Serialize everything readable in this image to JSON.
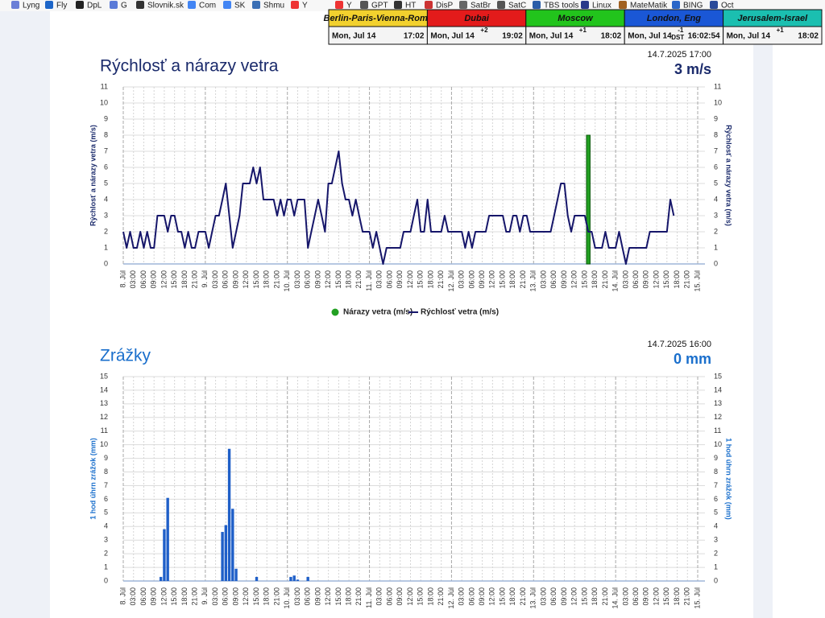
{
  "bookmarks": [
    "Lyng",
    "Fly",
    "DpL",
    "G",
    "Slovnik.sk",
    "Com",
    "SK",
    "Shmu",
    "Y",
    "Y",
    "GPT",
    "HT",
    "DisP",
    "SatBr",
    "SatC",
    "TBS tools",
    "Linux",
    "MateMatik",
    "BING",
    "Oct"
  ],
  "clocks": [
    {
      "city": "Berlin-Paris-Vienna-Roma",
      "date": "Mon, Jul 14",
      "time": "17:02",
      "color": "#f2d12e"
    },
    {
      "city": "Dubai",
      "date": "Mon, Jul 14",
      "offset": "+2",
      "time": "19:02",
      "color": "#e31b1b"
    },
    {
      "city": "Moscow",
      "date": "Mon, Jul 14",
      "offset": "+1",
      "time": "18:02",
      "color": "#22c41c"
    },
    {
      "city": "London, Eng",
      "date": "Mon, Jul 14",
      "offset": "-1",
      "note": "DST",
      "time": "16:02:54",
      "color": "#1a57d6"
    },
    {
      "city": "Jerusalem-Israel",
      "date": "Mon, Jul 14",
      "offset": "+1",
      "time": "18:02",
      "color": "#1bbfb0"
    }
  ],
  "chart_data": [
    {
      "type": "line",
      "title": "Rýchlosť a nárazy vetra",
      "timestamp": "14.7.2025 17:00",
      "current": "3 m/s",
      "y_label": "Rýchlosť a nárazy vetra (m/s)",
      "categories": [
        "8. Júl",
        null,
        null,
        "03:00",
        null,
        null,
        "06:00",
        null,
        null,
        "09:00",
        null,
        null,
        "12:00",
        null,
        null,
        "15:00",
        null,
        null,
        "18:00",
        null,
        null,
        "21:00",
        null,
        null,
        "9. Júl",
        null,
        null,
        "03:00",
        null,
        null,
        "06:00",
        null,
        null,
        "09:00",
        null,
        null,
        "12:00",
        null,
        null,
        "15:00",
        null,
        null,
        "18:00",
        null,
        null,
        "21:00",
        null,
        null,
        "10. Júl",
        null,
        null,
        "03:00",
        null,
        null,
        "06:00",
        null,
        null,
        "09:00",
        null,
        null,
        "12:00",
        null,
        null,
        "15:00",
        null,
        null,
        "18:00",
        null,
        null,
        "21:00",
        null,
        null,
        "11. Júl",
        null,
        null,
        "03:00",
        null,
        null,
        "06:00",
        null,
        null,
        "09:00",
        null,
        null,
        "12:00",
        null,
        null,
        "15:00",
        null,
        null,
        "18:00",
        null,
        null,
        "21:00",
        null,
        null,
        "12. Júl",
        null,
        null,
        "03:00",
        null,
        null,
        "06:00",
        null,
        null,
        "09:00",
        null,
        null,
        "12:00",
        null,
        null,
        "15:00",
        null,
        null,
        "18:00",
        null,
        null,
        "21:00",
        null,
        null,
        "13. Júl",
        null,
        null,
        "03:00",
        null,
        null,
        "06:00",
        null,
        null,
        "09:00",
        null,
        null,
        "12:00",
        null,
        null,
        "15:00",
        null,
        null,
        "18:00",
        null,
        null,
        "21:00",
        null,
        null,
        "14. Júl",
        null,
        null,
        "03:00",
        null,
        null,
        "06:00",
        null,
        null,
        "09:00",
        null,
        null,
        "12:00",
        null,
        null,
        "15:00",
        null,
        null,
        "18:00",
        null,
        null,
        "21:00",
        null,
        null,
        "15. Júl"
      ],
      "series": [
        {
          "name": "Nárazy vetra (m/s)",
          "type": "bar",
          "color": "#22a022",
          "values": [
            null,
            null,
            null,
            null,
            null,
            null,
            null,
            null,
            null,
            null,
            null,
            null,
            null,
            null,
            null,
            null,
            null,
            null,
            null,
            null,
            null,
            null,
            null,
            null,
            null,
            null,
            null,
            null,
            null,
            null,
            null,
            null,
            null,
            null,
            null,
            null,
            null,
            null,
            null,
            null,
            null,
            null,
            null,
            null,
            null,
            null,
            null,
            null,
            null,
            null,
            null,
            null,
            null,
            null,
            null,
            null,
            null,
            null,
            null,
            null,
            null,
            null,
            null,
            null,
            null,
            null,
            null,
            null,
            null,
            null,
            null,
            null,
            null,
            null,
            null,
            null,
            null,
            null,
            null,
            null,
            null,
            null,
            null,
            null,
            null,
            null,
            null,
            null,
            null,
            null,
            null,
            null,
            null,
            null,
            null,
            null,
            null,
            null,
            null,
            null,
            null,
            null,
            null,
            null,
            null,
            null,
            null,
            null,
            null,
            null,
            null,
            null,
            null,
            null,
            null,
            null,
            null,
            null,
            null,
            null,
            null,
            null,
            null,
            null,
            null,
            null,
            null,
            null,
            null,
            null,
            null,
            null,
            null,
            null,
            null,
            null,
            8,
            null,
            null,
            null,
            null,
            null,
            null,
            null,
            null,
            null,
            null,
            null,
            null,
            null,
            null,
            null,
            null,
            null,
            null,
            null,
            null,
            null,
            null,
            null,
            null,
            null,
            null,
            null,
            null,
            null,
            null,
            null,
            null
          ]
        },
        {
          "name": "Rýchlosť vetra (m/s)",
          "type": "line",
          "color": "#16166a",
          "values": [
            2,
            1,
            2,
            1,
            1,
            2,
            1,
            2,
            1,
            1,
            3,
            3,
            3,
            2,
            3,
            3,
            2,
            2,
            1,
            2,
            1,
            1,
            2,
            2,
            2,
            1,
            2,
            3,
            3,
            4,
            5,
            3,
            1,
            2,
            3,
            5,
            5,
            5,
            6,
            5,
            6,
            4,
            4,
            4,
            4,
            3,
            4,
            3,
            4,
            4,
            3,
            4,
            4,
            4,
            1,
            2,
            3,
            4,
            3,
            2,
            5,
            5,
            6,
            7,
            5,
            4,
            4,
            3,
            4,
            3,
            2,
            2,
            2,
            1,
            2,
            1,
            0,
            1,
            1,
            1,
            1,
            1,
            2,
            2,
            2,
            3,
            4,
            2,
            2,
            4,
            2,
            2,
            2,
            2,
            3,
            2,
            2,
            2,
            2,
            2,
            1,
            2,
            1,
            2,
            2,
            2,
            2,
            3,
            3,
            3,
            3,
            3,
            2,
            2,
            3,
            3,
            2,
            3,
            3,
            2,
            2,
            2,
            2,
            2,
            2,
            2,
            3,
            4,
            5,
            5,
            3,
            2,
            3,
            3,
            3,
            3,
            2,
            2,
            1,
            1,
            1,
            2,
            1,
            1,
            1,
            2,
            1,
            0,
            1,
            1,
            1,
            1,
            1,
            1,
            2,
            2,
            2,
            2,
            2,
            2,
            4,
            3,
            null,
            null,
            null,
            null,
            null,
            null,
            null
          ]
        }
      ],
      "ylim": [
        0,
        11
      ],
      "yticks": [
        0,
        1,
        2,
        3,
        4,
        5,
        6,
        7,
        8,
        9,
        10,
        11
      ],
      "grid": true,
      "legend": "bottom"
    },
    {
      "type": "bar",
      "title": "Zrážky",
      "timestamp": "14.7.2025 16:00",
      "current": "0 mm",
      "y_label": "1 hod úhrn zrážok (mm)",
      "color": "#1f5fc8",
      "categories": [
        "8. Júl",
        null,
        null,
        "03:00",
        null,
        null,
        "06:00",
        null,
        null,
        "09:00",
        null,
        null,
        "12:00",
        null,
        null,
        "15:00",
        null,
        null,
        "18:00",
        null,
        null,
        "21:00",
        null,
        null,
        "9. Júl",
        null,
        null,
        "03:00",
        null,
        null,
        "06:00",
        null,
        null,
        "09:00",
        null,
        null,
        "12:00",
        null,
        null,
        "15:00",
        null,
        null,
        "18:00",
        null,
        null,
        "21:00",
        null,
        null,
        "10. Júl",
        null,
        null,
        "03:00",
        null,
        null,
        "06:00",
        null,
        null,
        "09:00",
        null,
        null,
        "12:00",
        null,
        null,
        "15:00",
        null,
        null,
        "18:00",
        null,
        null,
        "21:00",
        null,
        null,
        "11. Júl",
        null,
        null,
        "03:00",
        null,
        null,
        "06:00",
        null,
        null,
        "09:00",
        null,
        null,
        "12:00",
        null,
        null,
        "15:00",
        null,
        null,
        "18:00",
        null,
        null,
        "21:00",
        null,
        null,
        "12. Júl",
        null,
        null,
        "03:00",
        null,
        null,
        "06:00",
        null,
        null,
        "09:00",
        null,
        null,
        "12:00",
        null,
        null,
        "15:00",
        null,
        null,
        "18:00",
        null,
        null,
        "21:00",
        null,
        null,
        "13. Júl",
        null,
        null,
        "03:00",
        null,
        null,
        "06:00",
        null,
        null,
        "09:00",
        null,
        null,
        "12:00",
        null,
        null,
        "15:00",
        null,
        null,
        "18:00",
        null,
        null,
        "21:00",
        null,
        null,
        "14. Júl",
        null,
        null,
        "03:00",
        null,
        null,
        "06:00",
        null,
        null,
        "09:00",
        null,
        null,
        "12:00",
        null,
        null,
        "15:00",
        null,
        null,
        "18:00",
        null,
        null,
        "21:00",
        null,
        null,
        "15. Júl"
      ],
      "values": [
        0,
        0,
        0,
        0,
        0,
        0,
        0,
        0,
        0,
        0,
        0,
        0.3,
        3.8,
        6.1,
        0,
        0,
        0,
        0,
        0,
        0,
        0,
        0,
        0,
        0,
        0,
        0,
        0,
        0,
        0,
        3.6,
        4.1,
        9.7,
        5.3,
        0.9,
        0,
        0,
        0,
        0,
        0,
        0.3,
        0,
        0,
        0,
        0,
        0,
        0,
        0,
        0,
        0,
        0.3,
        0.4,
        0.1,
        0,
        0,
        0.3,
        0,
        0,
        0,
        0,
        0,
        0,
        0,
        0,
        0,
        0,
        0,
        0,
        0,
        0,
        0,
        0,
        0,
        0,
        0,
        0,
        0,
        0,
        0,
        0,
        0,
        0,
        0,
        0,
        0,
        0,
        0,
        0,
        0,
        0,
        0,
        0,
        0,
        0,
        0,
        0,
        0,
        0,
        0,
        0,
        0,
        0,
        0,
        0,
        0,
        0,
        0,
        0,
        0,
        0,
        0,
        0,
        0,
        0,
        0,
        0,
        0,
        0,
        0,
        0,
        0,
        0,
        0,
        0,
        0,
        0,
        0,
        0,
        0,
        0,
        0,
        0,
        0,
        0,
        0,
        0,
        0,
        0,
        0,
        0,
        0,
        0,
        0,
        0,
        0,
        0,
        0,
        0,
        0,
        0,
        0,
        0,
        0,
        0,
        0,
        0,
        0,
        0,
        0,
        0,
        0,
        0,
        null,
        null,
        null,
        null,
        null,
        null,
        null,
        null
      ],
      "ylim": [
        0,
        15
      ],
      "yticks": [
        0,
        1,
        2,
        3,
        4,
        5,
        6,
        7,
        8,
        9,
        10,
        11,
        12,
        13,
        14,
        15
      ],
      "grid": true
    }
  ]
}
